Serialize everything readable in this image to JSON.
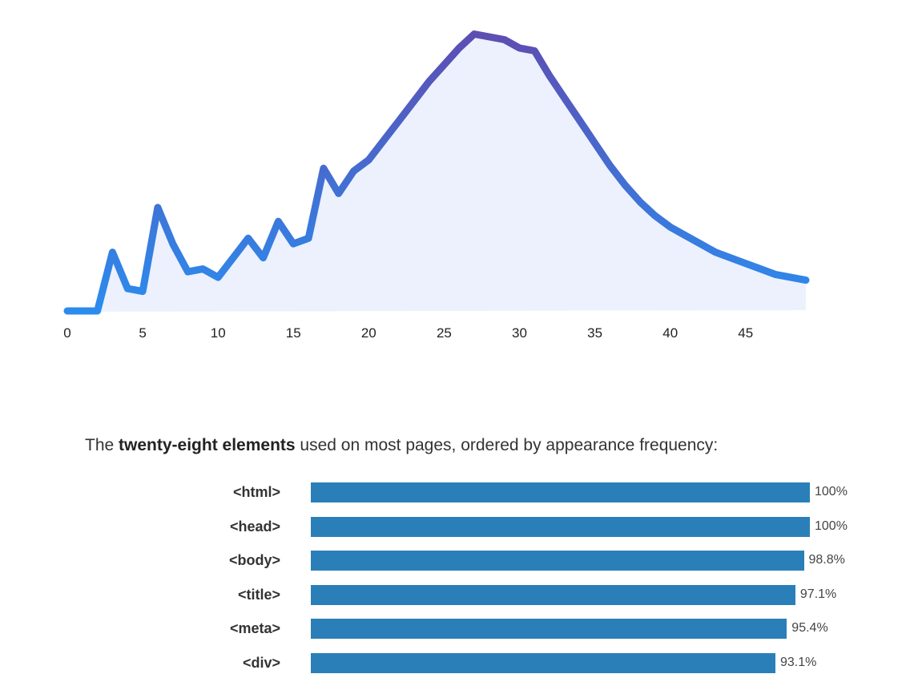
{
  "intro": {
    "prefix": "The ",
    "emphasis": "twenty-eight elements",
    "suffix": " used on most pages, ordered by appearance frequency:"
  },
  "chart_data": [
    {
      "type": "area",
      "x_ticks": [
        0,
        5,
        10,
        15,
        20,
        25,
        30,
        35,
        40,
        45
      ],
      "xlim": [
        0,
        49
      ],
      "ylim": [
        0,
        100
      ],
      "grid": false,
      "gradient_colors": [
        "#2b8cee",
        "#5e4db2"
      ],
      "fill_color": "#ecf1fd",
      "x": [
        0,
        1,
        2,
        3,
        4,
        5,
        6,
        7,
        8,
        9,
        10,
        11,
        12,
        13,
        14,
        15,
        16,
        17,
        18,
        19,
        20,
        21,
        22,
        23,
        24,
        25,
        26,
        27,
        28,
        29,
        30,
        31,
        32,
        33,
        34,
        35,
        36,
        37,
        38,
        39,
        40,
        41,
        42,
        43,
        44,
        45,
        46,
        47,
        48,
        49
      ],
      "y": [
        0,
        0,
        0,
        21,
        8,
        7,
        37,
        24,
        14,
        15,
        12,
        19,
        26,
        19,
        32,
        24,
        26,
        51,
        42,
        50,
        54,
        61,
        68,
        75,
        82,
        88,
        94,
        99,
        98,
        97,
        94,
        93,
        84,
        76,
        68,
        60,
        52,
        45,
        39,
        34,
        30,
        27,
        24,
        21,
        19,
        17,
        15,
        13,
        12,
        11
      ]
    },
    {
      "type": "bar",
      "orientation": "horizontal",
      "categories": [
        "<html>",
        "<head>",
        "<body>",
        "<title>",
        "<meta>",
        "<div>"
      ],
      "values": [
        100,
        100,
        98.8,
        97.1,
        95.4,
        93.1
      ],
      "value_labels": [
        "100%",
        "100%",
        "98.8%",
        "97.1%",
        "95.4%",
        "93.1%"
      ],
      "xlim": [
        0,
        100
      ],
      "bar_color": "#2a7fb8"
    }
  ]
}
